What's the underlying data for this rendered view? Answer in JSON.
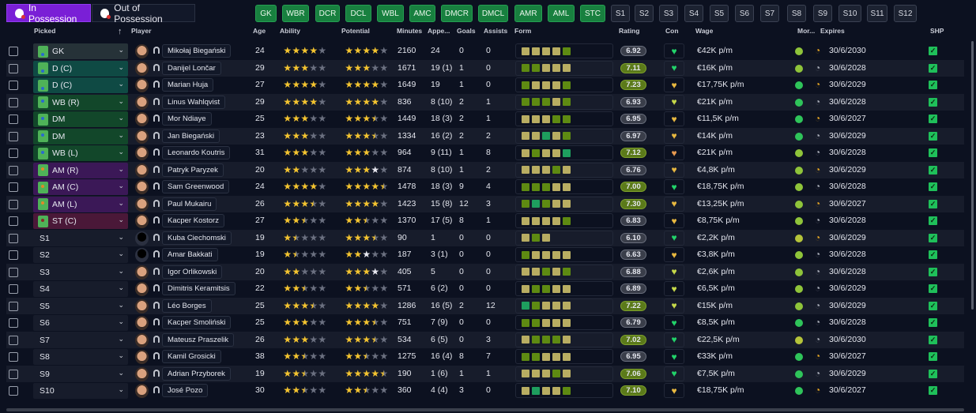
{
  "tabs": [
    {
      "label": "In Possession",
      "active": true
    },
    {
      "label": "Out of Possession",
      "active": false
    }
  ],
  "position_filters": [
    {
      "label": "GK",
      "filled": true
    },
    {
      "label": "WBR",
      "filled": true
    },
    {
      "label": "DCR",
      "filled": true
    },
    {
      "label": "DCL",
      "filled": true
    },
    {
      "label": "WBL",
      "filled": true
    },
    {
      "label": "AMC",
      "filled": true
    },
    {
      "label": "DMCR",
      "filled": true
    },
    {
      "label": "DMCL",
      "filled": true
    },
    {
      "label": "AMR",
      "filled": true
    },
    {
      "label": "AML",
      "filled": true
    },
    {
      "label": "STC",
      "filled": true
    },
    {
      "label": "S1",
      "filled": false
    },
    {
      "label": "S2",
      "filled": false
    },
    {
      "label": "S3",
      "filled": false
    },
    {
      "label": "S4",
      "filled": false
    },
    {
      "label": "S5",
      "filled": false
    },
    {
      "label": "S6",
      "filled": false
    },
    {
      "label": "S7",
      "filled": false
    },
    {
      "label": "S8",
      "filled": false
    },
    {
      "label": "S9",
      "filled": false
    },
    {
      "label": "S10",
      "filled": false
    },
    {
      "label": "S11",
      "filled": false
    },
    {
      "label": "S12",
      "filled": false
    }
  ],
  "columns": {
    "picked": "Picked",
    "sort_icon": "arrow-up-icon",
    "player": "Player",
    "age": "Age",
    "ability": "Ability",
    "potential": "Potential",
    "minutes": "Minutes",
    "apps": "Appe...",
    "goals": "Goals",
    "assists": "Assists",
    "form": "Form",
    "rating": "Rating",
    "con": "Con",
    "wage": "Wage",
    "morale": "Mor...",
    "expires": "Expires",
    "shp": "SHP"
  },
  "colors": {
    "accent": "#7a1fd6",
    "filter_green": "#18803f",
    "form_yellow": "#b8ad62",
    "form_green": "#5e8a12",
    "form_teal": "#1e9e5e",
    "slot_gk": "#263238",
    "slot_def": "#0f4a44",
    "slot_mid": "#12472a",
    "slot_att": "#3b1857",
    "slot_st": "#4a1838",
    "slot_sub": "#171c2b"
  },
  "players": [
    {
      "slot": "GK",
      "slot_type": "gk",
      "name": "Mikołaj Biegański",
      "age": "24",
      "ability": 4,
      "potential": 4,
      "pot_white": 0,
      "minutes": "2160",
      "apps": "24",
      "goals": "0",
      "assists": "0",
      "form": "yyyyg",
      "rating": "6.92",
      "con": "green",
      "wage": "€42K p/m",
      "morale": "#8fc43a",
      "clock": "orange",
      "expires": "30/6/2030"
    },
    {
      "slot": "D (C)",
      "slot_type": "def",
      "name": "Danijel Lončar",
      "age": "29",
      "ability": 3,
      "potential": 3,
      "pot_white": 0,
      "minutes": "1671",
      "apps": "19 (1)",
      "goals": "1",
      "assists": "0",
      "form": "ggyyy",
      "rating": "7.11",
      "con": "green",
      "wage": "€16K p/m",
      "morale": "#8fc43a",
      "clock": "grey",
      "expires": "30/6/2028"
    },
    {
      "slot": "D (C)",
      "slot_type": "def",
      "name": "Marian Huja",
      "age": "27",
      "ability": 4,
      "potential": 4,
      "pot_white": 0,
      "minutes": "1649",
      "apps": "19",
      "goals": "1",
      "assists": "0",
      "form": "gyyyg",
      "rating": "7.23",
      "con": "yellow",
      "wage": "€17,75K p/m",
      "morale": "#2fc45a",
      "clock": "orange",
      "expires": "30/6/2029"
    },
    {
      "slot": "WB (R)",
      "slot_type": "mid",
      "name": "Linus Wahlqvist",
      "age": "29",
      "ability": 4,
      "potential": 4,
      "pot_white": 0,
      "minutes": "836",
      "apps": "8 (10)",
      "goals": "2",
      "assists": "1",
      "form": "gggyg",
      "rating": "6.93",
      "con": "lime",
      "wage": "€21K p/m",
      "morale": "#2fc45a",
      "clock": "grey",
      "expires": "30/6/2028"
    },
    {
      "slot": "DM",
      "slot_type": "mid",
      "name": "Mor Ndiaye",
      "age": "25",
      "ability": 3,
      "potential": 3.5,
      "pot_white": 0,
      "minutes": "1449",
      "apps": "18 (3)",
      "goals": "2",
      "assists": "1",
      "form": "yyygg",
      "rating": "6.95",
      "con": "yellow",
      "wage": "€11,5K p/m",
      "morale": "#2fc45a",
      "clock": "orange",
      "expires": "30/6/2027"
    },
    {
      "slot": "DM",
      "slot_type": "mid",
      "name": "Jan Biegański",
      "age": "23",
      "ability": 3,
      "potential": 3.5,
      "pot_white": 0,
      "minutes": "1334",
      "apps": "16 (2)",
      "goals": "2",
      "assists": "2",
      "form": "yytyg",
      "rating": "6.97",
      "con": "yellow",
      "wage": "€14K p/m",
      "morale": "#2fc45a",
      "clock": "grey",
      "expires": "30/6/2029"
    },
    {
      "slot": "WB (L)",
      "slot_type": "mid",
      "name": "Leonardo Koutris",
      "age": "31",
      "ability": 3,
      "potential": 3,
      "pot_white": 0,
      "minutes": "964",
      "apps": "9 (11)",
      "goals": "1",
      "assists": "8",
      "form": "ygyyt",
      "rating": "7.12",
      "con": "orange",
      "wage": "€21K p/m",
      "morale": "#8fc43a",
      "clock": "grey",
      "expires": "30/6/2028"
    },
    {
      "slot": "AM (R)",
      "slot_type": "att",
      "name": "Patryk Paryzek",
      "age": "20",
      "ability": 2,
      "potential": 3,
      "pot_white": 1,
      "minutes": "874",
      "apps": "8 (10)",
      "goals": "1",
      "assists": "2",
      "form": "yyygy",
      "rating": "6.76",
      "con": "yellow",
      "wage": "€4,8K p/m",
      "morale": "#8fc43a",
      "clock": "orange",
      "expires": "30/6/2029"
    },
    {
      "slot": "AM (C)",
      "slot_type": "att",
      "name": "Sam Greenwood",
      "age": "24",
      "ability": 4,
      "potential": 4.5,
      "pot_white": 0,
      "minutes": "1478",
      "apps": "18 (3)",
      "goals": "9",
      "assists": "4",
      "form": "gggyy",
      "rating": "7.00",
      "con": "green",
      "wage": "€18,75K p/m",
      "morale": "#8fc43a",
      "clock": "grey",
      "expires": "30/6/2028"
    },
    {
      "slot": "AM (L)",
      "slot_type": "att",
      "name": "Paul Mukairu",
      "age": "26",
      "ability": 3.5,
      "potential": 4,
      "pot_white": 0,
      "minutes": "1423",
      "apps": "15 (8)",
      "goals": "12",
      "assists": "3",
      "form": "gtgyy",
      "rating": "7.30",
      "con": "yellow",
      "wage": "€13,25K p/m",
      "morale": "#8fc43a",
      "clock": "orange",
      "expires": "30/6/2027"
    },
    {
      "slot": "ST (C)",
      "slot_type": "st",
      "name": "Kacper Kostorz",
      "age": "27",
      "ability": 2.5,
      "potential": 2.5,
      "pot_white": 0,
      "minutes": "1370",
      "apps": "17 (5)",
      "goals": "8",
      "assists": "1",
      "form": "yyyyg",
      "rating": "6.83",
      "con": "yellow",
      "wage": "€8,75K p/m",
      "morale": "#8fc43a",
      "clock": "grey",
      "expires": "30/6/2028"
    },
    {
      "slot": "S1",
      "slot_type": "sub",
      "name": "Kuba Ciechomski",
      "age": "19",
      "ability": 1.5,
      "potential": 3.5,
      "pot_white": 0,
      "minutes": "90",
      "apps": "1",
      "goals": "0",
      "assists": "0",
      "form": "ygy",
      "rating": "6.10",
      "con": "green",
      "wage": "€2,2K p/m",
      "morale": "#b5c43a",
      "clock": "orange",
      "expires": "30/6/2029",
      "silhouette": true
    },
    {
      "slot": "S2",
      "slot_type": "sub",
      "name": "Amar Bakkati",
      "age": "19",
      "ability": 1.5,
      "potential": 2,
      "pot_white": 1,
      "minutes": "187",
      "apps": "3 (1)",
      "goals": "0",
      "assists": "0",
      "form": "gyyyy",
      "rating": "6.63",
      "con": "yellow",
      "wage": "€3,8K p/m",
      "morale": "#8fc43a",
      "clock": "grey",
      "expires": "30/6/2028",
      "silhouette": true
    },
    {
      "slot": "S3",
      "slot_type": "sub",
      "name": "Igor Orlikowski",
      "age": "20",
      "ability": 2,
      "potential": 3,
      "pot_white": 1,
      "minutes": "405",
      "apps": "5",
      "goals": "0",
      "assists": "0",
      "form": "yygyg",
      "rating": "6.88",
      "con": "lime",
      "wage": "€2,6K p/m",
      "morale": "#8fc43a",
      "clock": "grey",
      "expires": "30/6/2028"
    },
    {
      "slot": "S4",
      "slot_type": "sub",
      "name": "Dimitris Keramitsis",
      "age": "22",
      "ability": 2.5,
      "potential": 2.5,
      "pot_white": 0,
      "minutes": "571",
      "apps": "6 (2)",
      "goals": "0",
      "assists": "0",
      "form": "yggyy",
      "rating": "6.89",
      "con": "lime",
      "wage": "€6,5K p/m",
      "morale": "#8fc43a",
      "clock": "grey",
      "expires": "30/6/2029"
    },
    {
      "slot": "S5",
      "slot_type": "sub",
      "name": "Léo Borges",
      "age": "25",
      "ability": 3.5,
      "potential": 4,
      "pot_white": 0,
      "minutes": "1286",
      "apps": "16 (5)",
      "goals": "2",
      "assists": "12",
      "form": "tgyyy",
      "rating": "7.22",
      "con": "lime",
      "wage": "€15K p/m",
      "morale": "#8fc43a",
      "clock": "grey",
      "expires": "30/6/2029"
    },
    {
      "slot": "S6",
      "slot_type": "sub",
      "name": "Kacper Smoliński",
      "age": "25",
      "ability": 3,
      "potential": 3.5,
      "pot_white": 0,
      "minutes": "751",
      "apps": "7 (9)",
      "goals": "0",
      "assists": "0",
      "form": "ggyyy",
      "rating": "6.79",
      "con": "green",
      "wage": "€8,5K p/m",
      "morale": "#2fc45a",
      "clock": "grey",
      "expires": "30/6/2028"
    },
    {
      "slot": "S7",
      "slot_type": "sub",
      "name": "Mateusz Praszelik",
      "age": "26",
      "ability": 3,
      "potential": 3.5,
      "pot_white": 0,
      "minutes": "534",
      "apps": "6 (5)",
      "goals": "0",
      "assists": "3",
      "form": "ygggy",
      "rating": "7.02",
      "con": "green",
      "wage": "€22,5K p/m",
      "morale": "#b5c43a",
      "clock": "grey",
      "expires": "30/6/2030"
    },
    {
      "slot": "S8",
      "slot_type": "sub",
      "name": "Kamil Grosicki",
      "age": "38",
      "ability": 2.5,
      "potential": 2.5,
      "pot_white": 0,
      "minutes": "1275",
      "apps": "16 (4)",
      "goals": "8",
      "assists": "7",
      "form": "ggyyy",
      "rating": "6.95",
      "con": "green",
      "wage": "€33K p/m",
      "morale": "#2fc45a",
      "clock": "orange",
      "expires": "30/6/2027"
    },
    {
      "slot": "S9",
      "slot_type": "sub",
      "name": "Adrian Przyborek",
      "age": "19",
      "ability": 2.5,
      "potential": 4.5,
      "pot_white": 0,
      "minutes": "190",
      "apps": "1 (6)",
      "goals": "1",
      "assists": "1",
      "form": "yyygy",
      "rating": "7.06",
      "con": "green",
      "wage": "€7,5K p/m",
      "morale": "#2fc45a",
      "clock": "grey",
      "expires": "30/6/2029"
    },
    {
      "slot": "S10",
      "slot_type": "sub",
      "name": "José Pozo",
      "age": "30",
      "ability": 2.5,
      "potential": 2.5,
      "pot_white": 0,
      "minutes": "360",
      "apps": "4 (4)",
      "goals": "3",
      "assists": "0",
      "form": "ytyyg",
      "rating": "7.10",
      "con": "yellow",
      "wage": "€18,75K p/m",
      "morale": "#2fc45a",
      "clock": "orange",
      "expires": "30/6/2027"
    }
  ]
}
